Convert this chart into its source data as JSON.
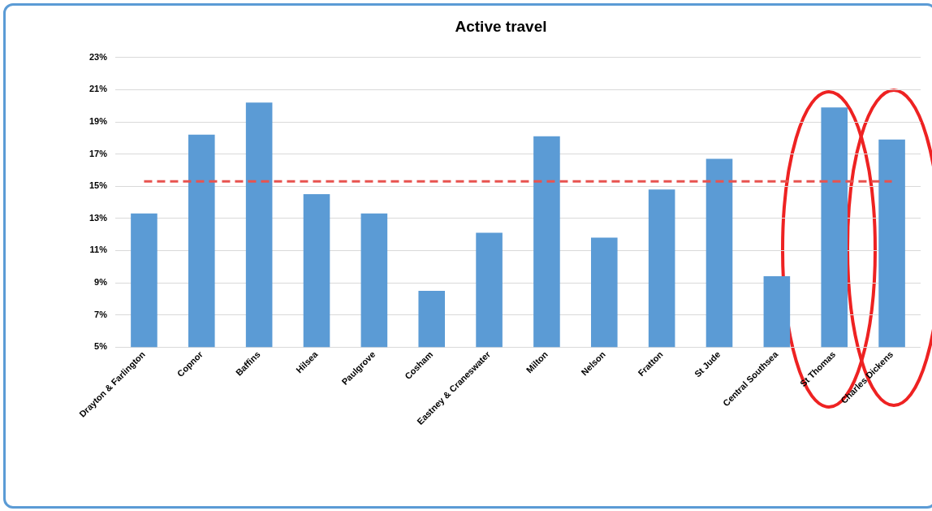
{
  "chart_data": {
    "type": "bar",
    "title": "Active travel",
    "categories": [
      "Drayton & Farlington",
      "Copnor",
      "Baffins",
      "Hilsea",
      "Paulgrove",
      "Cosham",
      "Eastney & Craneswater",
      "Milton",
      "Nelson",
      "Fratton",
      "St Jude",
      "Central Southsea",
      "St Thomas",
      "Charles Dickens"
    ],
    "values": [
      13.3,
      18.2,
      20.2,
      14.5,
      13.3,
      8.5,
      12.1,
      18.1,
      11.8,
      14.8,
      16.7,
      9.4,
      19.9,
      17.9
    ],
    "color": "#5b9bd5",
    "ylim": [
      5,
      23
    ],
    "yticks": [
      {
        "value": 5,
        "label": "5%"
      },
      {
        "value": 7,
        "label": "7%"
      },
      {
        "value": 9,
        "label": "9%"
      },
      {
        "value": 11,
        "label": "11%"
      },
      {
        "value": 13,
        "label": "13%"
      },
      {
        "value": 15,
        "label": "15%"
      },
      {
        "value": 17,
        "label": "17%"
      },
      {
        "value": 19,
        "label": "19%"
      },
      {
        "value": 21,
        "label": "21%"
      },
      {
        "value": 23,
        "label": "23%"
      }
    ],
    "grid": "y",
    "legend": false,
    "ref_lines": [
      {
        "axis": "y",
        "value": 15.3,
        "color": "#e8534f",
        "line_style": "dashed"
      }
    ]
  }
}
